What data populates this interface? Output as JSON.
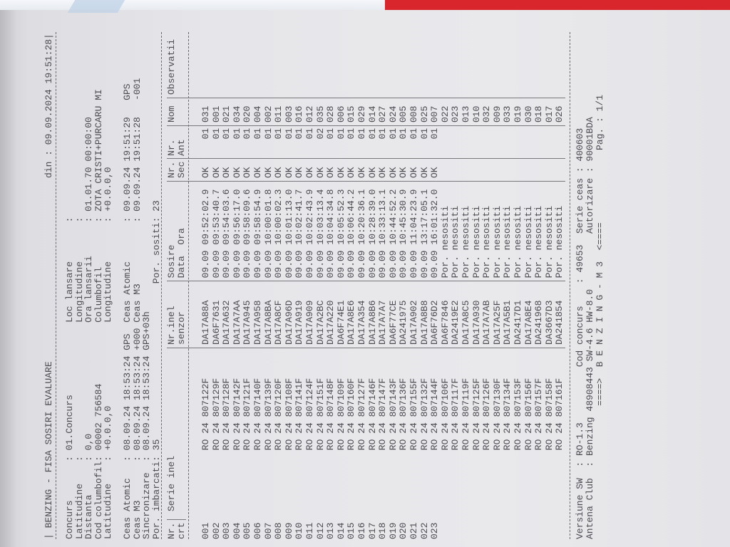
{
  "header": {
    "title": "BENZING - FISA SOSIRI EVALUARE",
    "din_label": "din :",
    "datetime": "09.09.2024 19:51:28"
  },
  "info_left": [
    {
      "label": "Concurs",
      "value": "01.Concurs"
    },
    {
      "label": "Latitudine",
      "value": ""
    },
    {
      "label": "Distanta",
      "value": "0,0"
    },
    {
      "label": "Cod columbofil",
      "value": "00002 756584"
    },
    {
      "label": "Latitudine",
      "value": "+0.0.0,0"
    }
  ],
  "info_right": [
    {
      "label": "Loc lansare",
      "value": ""
    },
    {
      "label": "Longitudine",
      "value": ""
    },
    {
      "label": "Ora lansarii",
      "value": "01.01.70 00:00:00"
    },
    {
      "label": "Columbofil",
      "value": "ZOTA CRISTI+PURCARU MI"
    },
    {
      "label": "Longitudine",
      "value": "+0.0.0,0"
    }
  ],
  "clocks": [
    {
      "label": "Ceas Atomic",
      "date": "08.09.24",
      "time": "18:53:24",
      "note": "GPS",
      "rlabel": "Ceas Atomic",
      "rdate": "09.09.24",
      "rtime": "19:51:29",
      "rnote": "GPS"
    },
    {
      "label": "Ceas M3",
      "date": "08.09.24",
      "time": "18:53:24",
      "note": "+000",
      "rlabel": "Ceas M3",
      "rdate": "09.09.24",
      "rtime": "19:51:28",
      "rnote": "-001"
    },
    {
      "label": "Sincronizare",
      "date": "08.09.24",
      "time": "18:53:24",
      "note": "GPS+03h"
    }
  ],
  "counts": {
    "imbarcati_label": "Por. imbarcati",
    "imbarcati": "35",
    "sositi_label": "Por. sositi",
    "sositi": "23"
  },
  "table": {
    "headers": {
      "nr1": "Nr.",
      "nr2": "crt",
      "serie": "Serie inel",
      "inel1": "Nr.inel",
      "inel2": "senzor",
      "sosire1": "Sosire",
      "data": "Data",
      "ora": "Ora",
      "sec1": "Nr.",
      "sec2": "Sec",
      "ant1": "Nr.",
      "ant2": "Ant",
      "nom": "Nom",
      "obs": "Observatii"
    },
    "rows": [
      {
        "nr": "001",
        "serie": "RO 24",
        "inel": "807122F",
        "senzor": "DA17A88A",
        "data": "09.09",
        "ora": "09:52:02.9",
        "sec": "OK",
        "ant": "01",
        "nom": "031"
      },
      {
        "nr": "002",
        "serie": "RO 24",
        "inel": "807129F",
        "senzor": "DA6F7631",
        "data": "09.09",
        "ora": "09:53:40.7",
        "sec": "OK",
        "ant": "01",
        "nom": "001"
      },
      {
        "nr": "003",
        "serie": "RO 24",
        "inel": "807128F",
        "senzor": "DA17A632",
        "data": "09.09",
        "ora": "09:54:03.6",
        "sec": "OK",
        "ant": "01",
        "nom": "021"
      },
      {
        "nr": "004",
        "serie": "RO 24",
        "inel": "807142F",
        "senzor": "DA17A7AA",
        "data": "09.09",
        "ora": "09:56:17.0",
        "sec": "OK",
        "ant": "01",
        "nom": "034"
      },
      {
        "nr": "005",
        "serie": "RO 24",
        "inel": "807121F",
        "senzor": "DA17A945",
        "data": "09.09",
        "ora": "09:58:09.6",
        "sec": "OK",
        "ant": "01",
        "nom": "020"
      },
      {
        "nr": "006",
        "serie": "RO 24",
        "inel": "807140F",
        "senzor": "DA17A958",
        "data": "09.09",
        "ora": "09:58:54.9",
        "sec": "OK",
        "ant": "01",
        "nom": "004"
      },
      {
        "nr": "007",
        "serie": "RO 24",
        "inel": "807139F",
        "senzor": "DA17A8BA",
        "data": "09.09",
        "ora": "10:00:01.8",
        "sec": "OK",
        "ant": "01",
        "nom": "002"
      },
      {
        "nr": "008",
        "serie": "RO 24",
        "inel": "807120F",
        "senzor": "DA17A8CF",
        "data": "09.09",
        "ora": "10:00:02.3",
        "sec": "OK",
        "ant": "01",
        "nom": "011"
      },
      {
        "nr": "009",
        "serie": "RO 24",
        "inel": "807108F",
        "senzor": "DA17A96D",
        "data": "09.09",
        "ora": "10:01:13.0",
        "sec": "OK",
        "ant": "01",
        "nom": "003"
      },
      {
        "nr": "010",
        "serie": "RO 24",
        "inel": "807141F",
        "senzor": "DA17A919",
        "data": "09.09",
        "ora": "10:02:41.7",
        "sec": "OK",
        "ant": "01",
        "nom": "016"
      },
      {
        "nr": "011",
        "serie": "RO 24",
        "inel": "807124F",
        "senzor": "DA17A909",
        "data": "09.09",
        "ora": "10:02:43.9",
        "sec": "OK",
        "ant": "01",
        "nom": "012"
      },
      {
        "nr": "012",
        "serie": "RO 24",
        "inel": "807151F",
        "senzor": "DA17A2BC",
        "data": "09.09",
        "ora": "10:03:13.4",
        "sec": "OK",
        "ant": "02",
        "nom": "035"
      },
      {
        "nr": "013",
        "serie": "RO 24",
        "inel": "807148F",
        "senzor": "DA17A220",
        "data": "09.09",
        "ora": "10:04:34.8",
        "sec": "OK",
        "ant": "01",
        "nom": "028"
      },
      {
        "nr": "014",
        "serie": "RO 24",
        "inel": "807109F",
        "senzor": "DA6F74E1",
        "data": "09.09",
        "ora": "10:05:52.3",
        "sec": "OK",
        "ant": "01",
        "nom": "006"
      },
      {
        "nr": "015",
        "serie": "RO 24",
        "inel": "807160F",
        "senzor": "DA17A8E6",
        "data": "09.09",
        "ora": "10:06:44.2",
        "sec": "OK",
        "ant": "01",
        "nom": "015"
      },
      {
        "nr": "016",
        "serie": "RO 24",
        "inel": "807127F",
        "senzor": "DA17A354",
        "data": "09.09",
        "ora": "10:20:36.1",
        "sec": "OK",
        "ant": "01",
        "nom": "029"
      },
      {
        "nr": "017",
        "serie": "RO 24",
        "inel": "807146F",
        "senzor": "DA17A8B6",
        "data": "09.09",
        "ora": "10:28:39.0",
        "sec": "OK",
        "ant": "01",
        "nom": "014"
      },
      {
        "nr": "018",
        "serie": "RO 24",
        "inel": "807147F",
        "senzor": "DA17A7A7",
        "data": "09.09",
        "ora": "10:33:13.1",
        "sec": "OK",
        "ant": "01",
        "nom": "027"
      },
      {
        "nr": "019",
        "serie": "RO 24",
        "inel": "807143F",
        "senzor": "DA6F77CE",
        "data": "09.09",
        "ora": "10:44:52.2",
        "sec": "OK",
        "ant": "01",
        "nom": "024"
      },
      {
        "nr": "020",
        "serie": "RO 24",
        "inel": "807136F",
        "senzor": "DA241975",
        "data": "09.09",
        "ora": "10:45:30.9",
        "sec": "OK",
        "ant": "01",
        "nom": "005"
      },
      {
        "nr": "021",
        "serie": "RO 24",
        "inel": "807155F",
        "senzor": "DA17A902",
        "data": "09.09",
        "ora": "11:04:23.9",
        "sec": "OK",
        "ant": "01",
        "nom": "008"
      },
      {
        "nr": "022",
        "serie": "RO 24",
        "inel": "807132F",
        "senzor": "DA17A8B8",
        "data": "09.09",
        "ora": "13:17:05.1",
        "sec": "OK",
        "ant": "01",
        "nom": "025"
      },
      {
        "nr": "023",
        "serie": "RO 24",
        "inel": "807144F",
        "senzor": "DA6F76D2",
        "data": "09.09",
        "ora": "16:01:32.0",
        "sec": "OK",
        "ant": "01",
        "nom": "007"
      },
      {
        "serie": "RO 24",
        "inel": "807106F",
        "senzor": "DA6F7846",
        "status": "Por. nesositi",
        "nom": "022"
      },
      {
        "serie": "RO 24",
        "inel": "807117F",
        "senzor": "DA2419E2",
        "status": "Por. nesositi",
        "nom": "023"
      },
      {
        "serie": "RO 24",
        "inel": "807119F",
        "senzor": "DA17A8C5",
        "status": "Por. nesositi",
        "nom": "013"
      },
      {
        "serie": "RO 24",
        "inel": "807125F",
        "senzor": "DA17A930",
        "status": "Por. nesositi",
        "nom": "010"
      },
      {
        "serie": "RO 24",
        "inel": "807126F",
        "senzor": "DA17A7AB",
        "status": "Por. nesositi",
        "nom": "032"
      },
      {
        "serie": "RO 24",
        "inel": "807130F",
        "senzor": "DA17A25F",
        "status": "Por. nesositi",
        "nom": "009"
      },
      {
        "serie": "RO 24",
        "inel": "807134F",
        "senzor": "DA17A5B1",
        "status": "Por. nesositi",
        "nom": "033"
      },
      {
        "serie": "RO 24",
        "inel": "807153F",
        "senzor": "DA2417D1",
        "status": "Por. nesositi",
        "nom": "019"
      },
      {
        "serie": "RO 24",
        "inel": "807156F",
        "senzor": "DA17A8E4",
        "status": "Por. nesositi",
        "nom": "030"
      },
      {
        "serie": "RO 24",
        "inel": "807157F",
        "senzor": "DA241968",
        "status": "Por. nesositi",
        "nom": "018"
      },
      {
        "serie": "RO 24",
        "inel": "807158F",
        "senzor": "DA3667D3",
        "status": "Por. nesositi",
        "nom": "017"
      },
      {
        "serie": "RO 24",
        "inel": "807161F",
        "senzor": "DA241854",
        "status": "Por. nesositi",
        "nom": "026"
      }
    ]
  },
  "footer": {
    "versiune_label": "Versiune SW",
    "versiune": "RO-1.3",
    "cod_label": "Cod concurs",
    "cod": "49653",
    "serie_label": "Serie ceas",
    "serie": "400603",
    "antena_label": "Antena Club",
    "antena": "Benzing 48908443 SW-4.6 HW-8.0",
    "autorizare_label": "Autorizare",
    "autorizare": "90001BDA",
    "banner": "====>  B E N Z I N G - M 3  <====",
    "pag_label": "Pag. :",
    "pag": "1/1"
  }
}
